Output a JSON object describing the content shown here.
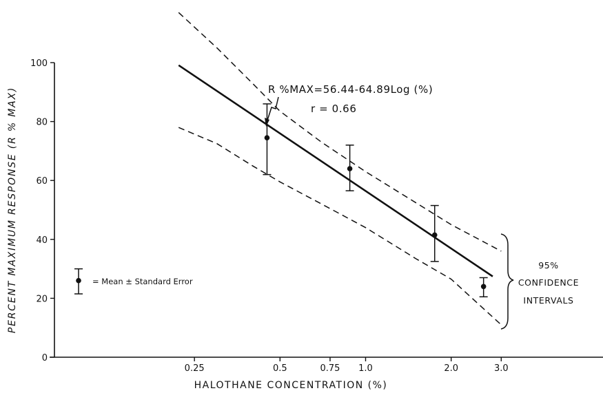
{
  "chart_data": {
    "type": "scatter",
    "xscale": "log",
    "xlabel": "HALOTHANE CONCENTRATION (%)",
    "ylabel": "PERCENT MAXIMUM RESPONSE (R % MAX)",
    "xlim": [
      0.1,
      5.0
    ],
    "ylim": [
      0,
      100
    ],
    "xticks": [
      0.25,
      0.5,
      0.75,
      1.0,
      2.0,
      3.0
    ],
    "xtick_labels": [
      "0.25",
      "0.5",
      "0.75",
      "1.0",
      "2.0",
      "3.0"
    ],
    "yticks": [
      0,
      20,
      40,
      60,
      80,
      100
    ],
    "ytick_labels": [
      "0",
      "20",
      "40",
      "60",
      "80",
      "100"
    ],
    "points": [
      {
        "x": 0.45,
        "y": 74.5,
        "lo": 62,
        "hi": 86
      },
      {
        "x": 0.88,
        "y": 64,
        "lo": 56.5,
        "hi": 72
      },
      {
        "x": 1.75,
        "y": 41.5,
        "lo": 32.5,
        "hi": 51.5
      },
      {
        "x": 2.6,
        "y": 24,
        "lo": 20.5,
        "hi": 27
      }
    ],
    "regression": {
      "equation": "R %MAX=56.44-64.89Log (%)",
      "intercept": 56.44,
      "slope": -64.89,
      "x_range": [
        0.22,
        2.8
      ],
      "r_label": "r = 0.66"
    },
    "confidence_upper": [
      [
        0.22,
        117
      ],
      [
        0.3,
        105
      ],
      [
        0.4,
        93
      ],
      [
        0.5,
        83.5
      ],
      [
        0.7,
        73
      ],
      [
        1.0,
        63
      ],
      [
        1.5,
        52.5
      ],
      [
        2.0,
        45
      ],
      [
        3.0,
        36
      ]
    ],
    "confidence_lower": [
      [
        0.22,
        78
      ],
      [
        0.3,
        72.5
      ],
      [
        0.4,
        65
      ],
      [
        0.5,
        59.5
      ],
      [
        0.7,
        52
      ],
      [
        1.0,
        44
      ],
      [
        1.5,
        33.5
      ],
      [
        2.0,
        26.5
      ],
      [
        3.0,
        11
      ]
    ],
    "legend": {
      "label": "= Mean ± Standard Error",
      "example": {
        "y": 26,
        "lo": 21.5,
        "hi": 30
      }
    },
    "annotations": {
      "ci_line1": "95%",
      "ci_line2": "CONFIDENCE",
      "ci_line3": "INTERVALS"
    }
  }
}
